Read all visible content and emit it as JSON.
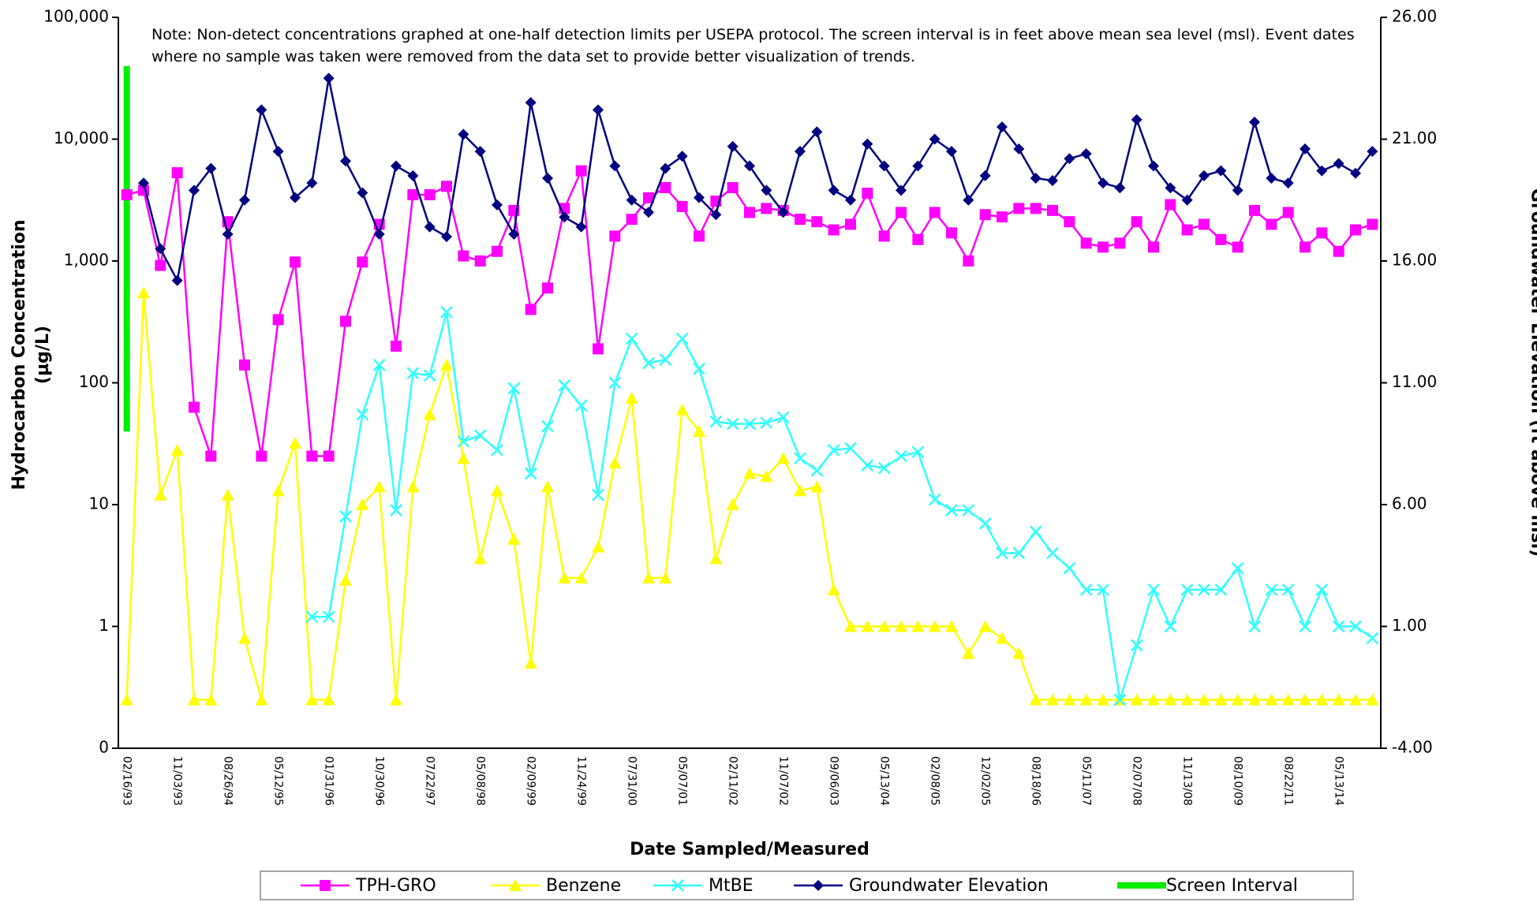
{
  "chart_data": {
    "type": "line",
    "note": "Note: Non-detect concentrations graphed at one-half detection limits per USEPA protocol. The screen interval is in feet above mean sea level (msl).  Event dates where no sample was taken were removed from the data set to provide better visualization of trends.",
    "x_label": "Date Sampled/Measured",
    "y_label": "Hydrocarbon Concentration (µg/L)",
    "y2_label": "Groundwater Elevation (ft above msl)",
    "log_scale": true,
    "categories": [
      "02/16/93",
      null,
      null,
      "11/03/93",
      null,
      null,
      "08/26/94",
      null,
      null,
      "05/12/95",
      null,
      null,
      "01/31/96",
      null,
      null,
      "10/30/96",
      null,
      null,
      "07/22/97",
      null,
      null,
      "05/08/98",
      null,
      null,
      "02/09/99",
      null,
      null,
      "11/24/99",
      null,
      null,
      "07/31/00",
      null,
      null,
      "05/07/01",
      null,
      null,
      "02/11/02",
      null,
      null,
      "11/07/02",
      null,
      null,
      "09/06/03",
      null,
      null,
      "05/13/04",
      null,
      null,
      "02/08/05",
      null,
      null,
      "12/02/05",
      null,
      null,
      "08/18/06",
      null,
      null,
      "05/11/07",
      null,
      null,
      "02/07/08",
      null,
      null,
      "11/13/08",
      null,
      null,
      "08/10/09",
      null,
      null,
      "08/22/11",
      null,
      null,
      "05/13/14",
      null,
      null
    ],
    "ylim": [
      0.1,
      100000
    ],
    "yticks": [
      {
        "value": 100000,
        "label": "100,000"
      },
      {
        "value": 10000,
        "label": "10,000"
      },
      {
        "value": 1000,
        "label": "1,000"
      },
      100,
      10,
      1,
      {
        "value": 0.1,
        "label": "0"
      }
    ],
    "y2lim": [
      -4,
      26
    ],
    "y2ticks": [
      {
        "value": 26,
        "label": "26.00"
      },
      {
        "value": 21,
        "label": "21.00"
      },
      {
        "value": 16,
        "label": "16.00"
      },
      {
        "value": 11,
        "label": "11.00"
      },
      {
        "value": 6,
        "label": "6.00"
      },
      {
        "value": 1,
        "label": "1.00"
      },
      {
        "value": -4,
        "label": "-4.00"
      }
    ],
    "series": [
      {
        "name": "TPH-GRO",
        "color": "#ff00ff",
        "marker": "square",
        "values": [
          3500,
          3800,
          920,
          5300,
          63,
          25,
          2100,
          140,
          25,
          330,
          980,
          25,
          25,
          320,
          980,
          2000,
          200,
          3500,
          3500,
          4100,
          1100,
          1000,
          1200,
          2600,
          400,
          600,
          2700,
          5500,
          190,
          1600,
          2200,
          3300,
          4000,
          2800,
          1600,
          3100,
          4000,
          2500,
          2700,
          2600,
          2200,
          2100,
          1800,
          2000,
          3600,
          1600,
          2500,
          1500,
          2500,
          1700,
          1000,
          2400,
          2300,
          2700,
          2700,
          2600,
          2100,
          1400,
          1300,
          1400,
          2100,
          1300,
          2900,
          1800,
          2000,
          1500,
          1300,
          2600,
          2000,
          2500,
          1300,
          1700,
          1200,
          1800,
          2000
        ]
      },
      {
        "name": "Benzene",
        "color": "#ffff00",
        "marker": "triangle",
        "values": [
          0.25,
          550,
          12,
          28,
          0.25,
          0.25,
          12,
          0.8,
          0.25,
          13,
          32,
          0.25,
          0.25,
          2.4,
          10,
          14,
          0.25,
          14,
          55,
          140,
          24,
          3.6,
          13,
          5.2,
          0.5,
          14,
          2.5,
          2.5,
          4.5,
          22,
          75,
          2.5,
          2.5,
          60,
          40,
          3.6,
          10,
          18,
          17,
          24,
          13,
          14,
          2,
          1,
          1,
          1,
          1,
          1,
          1,
          1,
          0.6,
          1,
          0.8,
          0.6,
          0.25,
          0.25,
          0.25,
          0.25,
          0.25,
          0.25,
          0.25,
          0.25,
          0.25,
          0.25,
          0.25,
          0.25,
          0.25,
          0.25,
          0.25,
          0.25,
          0.25,
          0.25,
          0.25,
          0.25,
          0.25
        ]
      },
      {
        "name": "MtBE",
        "color": "#33ffff",
        "marker": "x",
        "values": [
          null,
          null,
          null,
          null,
          null,
          null,
          null,
          null,
          null,
          null,
          null,
          1.2,
          1.2,
          8,
          55,
          140,
          9,
          120,
          115,
          380,
          33,
          37,
          28,
          90,
          18,
          44,
          95,
          65,
          12,
          100,
          230,
          145,
          155,
          230,
          130,
          48,
          46,
          46,
          47,
          52,
          24,
          19,
          28,
          29,
          21,
          20,
          25,
          27,
          11,
          9,
          9,
          7,
          4,
          4,
          6,
          4,
          3,
          2,
          2,
          0.25,
          0.7,
          2,
          1,
          2,
          2,
          2,
          3,
          1,
          2,
          2,
          1,
          2,
          1,
          1,
          0.8
        ]
      },
      {
        "name": "Groundwater Elevation",
        "color": "#000080",
        "marker": "diamond",
        "axis": "y2",
        "values": [
          null,
          19.2,
          16.5,
          15.2,
          18.9,
          19.8,
          17.1,
          18.5,
          22.2,
          20.5,
          18.6,
          19.2,
          23.5,
          20.1,
          18.8,
          17.1,
          19.9,
          19.5,
          17.4,
          17.0,
          21.2,
          20.5,
          18.3,
          17.1,
          22.5,
          19.4,
          17.8,
          17.4,
          22.2,
          19.9,
          18.5,
          18.0,
          19.8,
          20.3,
          18.6,
          17.9,
          20.7,
          19.9,
          18.9,
          18.0,
          20.5,
          21.3,
          18.9,
          18.5,
          20.8,
          19.9,
          18.9,
          19.9,
          21.0,
          20.5,
          18.5,
          19.5,
          21.5,
          20.6,
          19.4,
          19.3,
          20.2,
          20.4,
          19.2,
          19.0,
          21.8,
          19.9,
          19.0,
          18.5,
          19.5,
          19.7,
          18.9,
          21.7,
          19.4,
          19.2,
          20.6,
          19.7,
          20.0,
          19.6,
          20.5
        ]
      }
    ],
    "screen_interval": {
      "name": "Screen Interval",
      "color": "#00ee00",
      "top": 24,
      "bottom": 9
    }
  }
}
